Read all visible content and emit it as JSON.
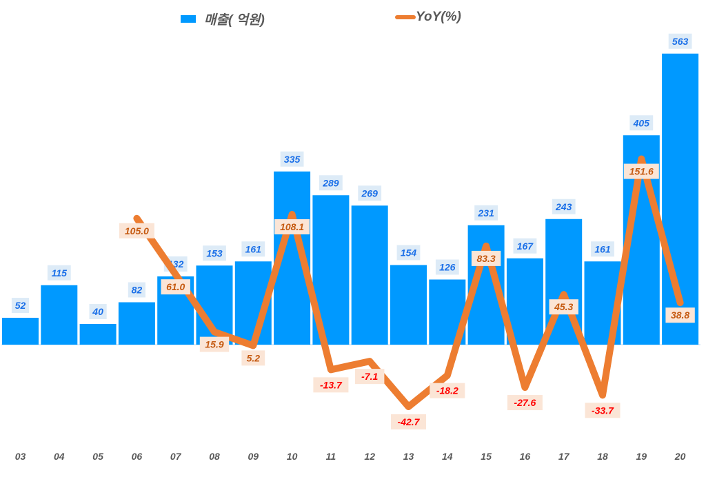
{
  "chart_data": {
    "type": "bar+line",
    "title": "",
    "categories": [
      "03",
      "04",
      "05",
      "06",
      "07",
      "08",
      "09",
      "10",
      "11",
      "12",
      "13",
      "14",
      "15",
      "16",
      "17",
      "18",
      "19",
      "20"
    ],
    "series": [
      {
        "name": "매출( 억원)",
        "type": "bar",
        "axis": "primary",
        "color": "#0099FF",
        "values": [
          52,
          115,
          40,
          82,
          132,
          153,
          161,
          335,
          289,
          269,
          154,
          126,
          231,
          167,
          243,
          161,
          405,
          563
        ]
      },
      {
        "name": "YoY(%)",
        "type": "line",
        "axis": "secondary",
        "color": "#ED7D31",
        "values": [
          null,
          null,
          null,
          105.0,
          61.0,
          15.9,
          5.2,
          108.1,
          -13.7,
          -7.1,
          -42.7,
          -18.2,
          83.3,
          -27.6,
          45.3,
          -33.7,
          151.6,
          38.8
        ]
      }
    ],
    "xlabel": "",
    "ylabel": "",
    "grid": false,
    "legend_position": "top",
    "axis_visible": false
  },
  "legend": {
    "bar_label": "매출( 억원)",
    "line_label": "YoY(%)"
  },
  "colors": {
    "bar": "#0099FF",
    "line": "#ED7D31",
    "bar_label_text": "#1A6FE8",
    "bar_label_bg": "#DDEBF7",
    "line_label_pos_text": "#C55A11",
    "line_label_neg_text": "#FF0000",
    "line_label_bg": "#FBE5D6",
    "axis_text": "#595959"
  }
}
